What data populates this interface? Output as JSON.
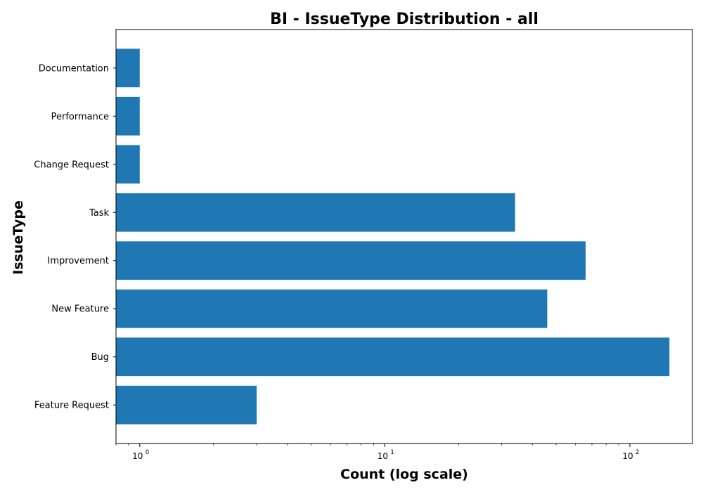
{
  "chart_data": {
    "type": "bar",
    "orientation": "horizontal",
    "title": "BI - IssueType Distribution - all",
    "xlabel": "Count (log scale)",
    "ylabel": "IssueType",
    "x_scale": "log",
    "xlim": [
      0.8,
      180
    ],
    "x_ticks": [
      {
        "value": 1,
        "base": "10",
        "exp": "0"
      },
      {
        "value": 10,
        "base": "10",
        "exp": "1"
      },
      {
        "value": 100,
        "base": "10",
        "exp": "2"
      }
    ],
    "categories": [
      "Feature Request",
      "Bug",
      "New Feature",
      "Improvement",
      "Task",
      "Change Request",
      "Performance",
      "Documentation"
    ],
    "values": [
      3,
      145,
      46,
      66,
      34,
      1,
      1,
      1
    ],
    "grid": false,
    "bar_color": "#1f77b4"
  }
}
